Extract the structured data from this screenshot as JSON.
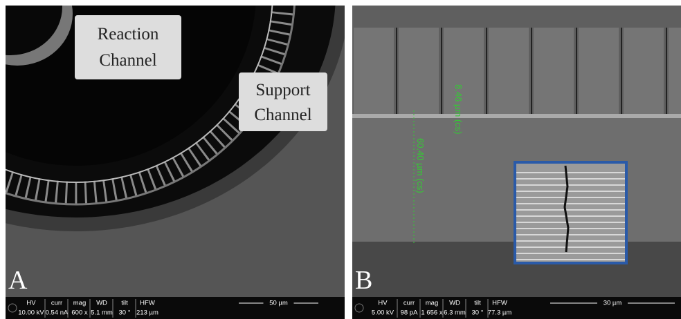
{
  "panels": [
    {
      "label": "A",
      "annotations": [
        "Reaction",
        "Channel",
        "Support",
        "Channel"
      ],
      "info": {
        "columns": [
          {
            "header": "HV",
            "value": "10.00 kV"
          },
          {
            "header": "curr",
            "value": "0.54 nA"
          },
          {
            "header": "mag",
            "value": "600 x"
          },
          {
            "header": "WD",
            "value": "5.1 mm"
          },
          {
            "header": "tilt",
            "value": "30 °"
          },
          {
            "header": "HFW",
            "value": "213 µm"
          }
        ],
        "scale_bar": "50 µm"
      }
    },
    {
      "label": "B",
      "annotations": [
        "8.46 µm (cs)",
        "60.40 µm (cs)"
      ],
      "info": {
        "columns": [
          {
            "header": "HV",
            "value": "5.00 kV"
          },
          {
            "header": "curr",
            "value": "98 pA"
          },
          {
            "header": "mag",
            "value": "1 656 x"
          },
          {
            "header": "WD",
            "value": "6.3 mm"
          },
          {
            "header": "tilt",
            "value": "30 °"
          },
          {
            "header": "HFW",
            "value": "77.3 µm"
          }
        ],
        "scale_bar": "30 µm"
      }
    }
  ]
}
